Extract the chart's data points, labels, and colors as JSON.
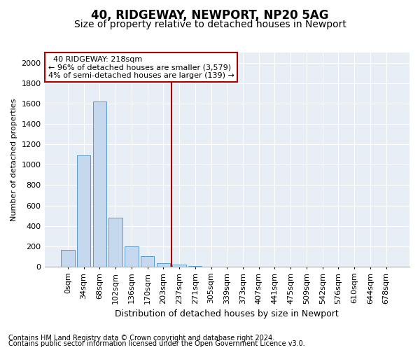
{
  "title1": "40, RIDGEWAY, NEWPORT, NP20 5AG",
  "title2": "Size of property relative to detached houses in Newport",
  "xlabel": "Distribution of detached houses by size in Newport",
  "ylabel": "Number of detached properties",
  "footnote1": "Contains HM Land Registry data © Crown copyright and database right 2024.",
  "footnote2": "Contains public sector information licensed under the Open Government Licence v3.0.",
  "annotation_title": "40 RIDGEWAY: 218sqm",
  "annotation_line1": "← 96% of detached houses are smaller (3,579)",
  "annotation_line2": "4% of semi-detached houses are larger (139) →",
  "bar_color": "#c5d8ed",
  "bar_edge_color": "#5a9ac8",
  "vline_color": "#aa0000",
  "annotation_box_color": "#aa0000",
  "background_color": "#e8eef5",
  "categories": [
    "0sqm",
    "34sqm",
    "68sqm",
    "102sqm",
    "136sqm",
    "170sqm",
    "203sqm",
    "237sqm",
    "271sqm",
    "305sqm",
    "339sqm",
    "373sqm",
    "407sqm",
    "441sqm",
    "475sqm",
    "509sqm",
    "542sqm",
    "576sqm",
    "610sqm",
    "644sqm",
    "678sqm"
  ],
  "values": [
    165,
    1090,
    1620,
    480,
    200,
    100,
    35,
    20,
    10,
    0,
    0,
    0,
    0,
    0,
    0,
    0,
    0,
    0,
    0,
    0,
    0
  ],
  "vline_x": 6.5,
  "ylim": [
    0,
    2100
  ],
  "yticks": [
    0,
    200,
    400,
    600,
    800,
    1000,
    1200,
    1400,
    1600,
    1800,
    2000
  ],
  "title1_fontsize": 12,
  "title2_fontsize": 10,
  "xlabel_fontsize": 9,
  "ylabel_fontsize": 8,
  "tick_fontsize": 8,
  "footnote_fontsize": 7
}
